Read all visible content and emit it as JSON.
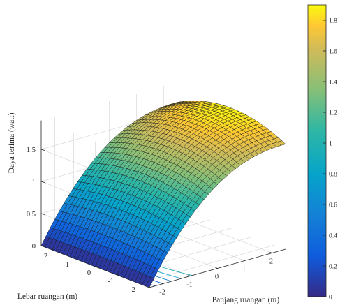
{
  "chart_data": {
    "type": "surface",
    "title": "",
    "xlabel": "Panjang ruangan (m)",
    "ylabel": "Lebar ruangan (m)",
    "zlabel": "Daya terima (watt)",
    "xlim": [
      -2.5,
      2.5
    ],
    "ylim": [
      -2.5,
      2.5
    ],
    "zlim": [
      0,
      1.95
    ],
    "x_ticks": [
      "-2",
      "-1",
      "0",
      "1",
      "2"
    ],
    "y_ticks": [
      "-2",
      "-1",
      "0",
      "1",
      "2"
    ],
    "z_ticks": [
      "0",
      "0.5",
      "1",
      "1.5"
    ],
    "grid": true,
    "colormap": "parula",
    "contour_projection_on_floor": true,
    "surface_samples": [
      {
        "x": -2.5,
        "y": -2.5,
        "z": 0.0
      },
      {
        "x": -2.5,
        "y": 0,
        "z": 0.02
      },
      {
        "x": -2.5,
        "y": 2.5,
        "z": 0.0
      },
      {
        "x": -1,
        "y": 0,
        "z": 0.3
      },
      {
        "x": 0,
        "y": 0,
        "z": 0.85
      },
      {
        "x": 1,
        "y": 0,
        "z": 1.4
      },
      {
        "x": 1.5,
        "y": 0,
        "z": 1.6
      },
      {
        "x": 2.5,
        "y": -2.5,
        "z": 1.7
      },
      {
        "x": 2.5,
        "y": 0,
        "z": 1.87
      },
      {
        "x": 2.5,
        "y": 2.5,
        "z": 1.72
      }
    ],
    "colorbar": {
      "range": [
        0,
        1.9
      ],
      "ticks": [
        "0",
        "0.2",
        "0.4",
        "0.6",
        "0.8",
        "1",
        "1.2",
        "1.4",
        "1.6",
        "1.8"
      ],
      "location": "right"
    }
  }
}
